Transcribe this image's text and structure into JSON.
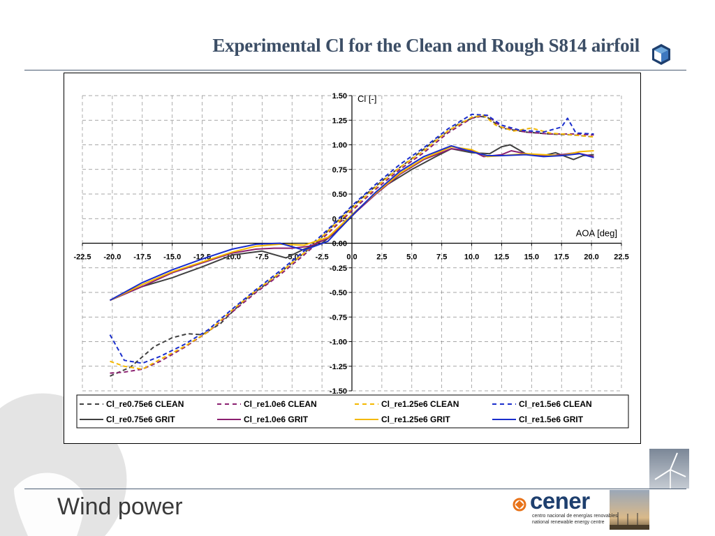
{
  "slide": {
    "title": "Experimental Cl for the Clean and Rough S814 airfoil",
    "footer": "Wind power",
    "brand": {
      "name": "cener",
      "subtitle_es": "centro nacional de energías renovables",
      "subtitle_en": "national renewable energy centre"
    }
  },
  "colors": {
    "title": "#3c4e66",
    "rule": "#4a5b72",
    "brand_orange": "#e8731a",
    "brand_blue": "#1e3f6e"
  },
  "chart_data": {
    "type": "line",
    "ylabel": "Cl [-]",
    "xlabel": "AOA [deg]",
    "xlim": [
      -22.5,
      22.5
    ],
    "ylim": [
      -1.5,
      1.5
    ],
    "x_ticks": [
      "-22.5",
      "-20.0",
      "-17.5",
      "-15.0",
      "-12.5",
      "-10.0",
      "-7.5",
      "-5.0",
      "-2.5",
      "0.0",
      "2.5",
      "5.0",
      "7.5",
      "10.0",
      "12.5",
      "15.0",
      "17.5",
      "20.0",
      "22.5"
    ],
    "y_ticks": [
      "1.50",
      "1.25",
      "1.00",
      "0.75",
      "0.50",
      "0.25",
      "0.00",
      "-0.25",
      "-0.50",
      "-0.75",
      "-1.00",
      "-1.25",
      "-1.50"
    ],
    "grid": true,
    "legend_position": "bottom",
    "series": [
      {
        "name": "Cl_re0.75e6 CLEAN",
        "color": "#404040",
        "dash": true,
        "x": [
          -20.2,
          -18.5,
          -16.5,
          -15.0,
          -13.7,
          -12.5,
          -11.0,
          -9.0,
          -7.0,
          -5.0,
          -3.0,
          -1.0,
          1.0,
          3.0,
          5.0,
          7.0,
          9.0,
          10.5,
          11.3,
          12.5,
          14.5,
          16.5,
          18.5,
          20.2
        ],
        "y": [
          -1.35,
          -1.26,
          -1.05,
          -0.96,
          -0.92,
          -0.93,
          -0.82,
          -0.58,
          -0.4,
          -0.2,
          0.0,
          0.25,
          0.48,
          0.68,
          0.86,
          1.05,
          1.22,
          1.29,
          1.28,
          1.17,
          1.13,
          1.11,
          1.1,
          1.08
        ]
      },
      {
        "name": "Cl_re1.0e6 CLEAN",
        "color": "#8b2070",
        "dash": true,
        "x": [
          -20.2,
          -19.0,
          -17.5,
          -16.0,
          -14.0,
          -12.0,
          -10.0,
          -8.0,
          -6.0,
          -4.0,
          -2.0,
          0.0,
          2.0,
          4.0,
          6.0,
          8.0,
          10.0,
          11.3,
          12.5,
          14.5,
          16.5,
          18.5,
          20.2
        ],
        "y": [
          -1.32,
          -1.31,
          -1.28,
          -1.2,
          -1.06,
          -0.9,
          -0.7,
          -0.5,
          -0.32,
          -0.12,
          0.1,
          0.33,
          0.55,
          0.75,
          0.92,
          1.12,
          1.27,
          1.3,
          1.18,
          1.13,
          1.11,
          1.11,
          1.1
        ]
      },
      {
        "name": "Cl_re1.25e6 CLEAN",
        "color": "#f4b800",
        "dash": true,
        "x": [
          -20.2,
          -19.0,
          -17.5,
          -16.0,
          -14.0,
          -12.0,
          -10.0,
          -8.0,
          -6.0,
          -4.0,
          -2.0,
          0.0,
          2.0,
          4.0,
          6.0,
          8.0,
          10.0,
          11.0,
          12.0,
          13.5,
          15.0,
          16.5,
          18.5,
          20.2
        ],
        "y": [
          -1.2,
          -1.25,
          -1.28,
          -1.18,
          -1.05,
          -0.9,
          -0.68,
          -0.48,
          -0.3,
          -0.1,
          0.12,
          0.35,
          0.57,
          0.77,
          0.94,
          1.14,
          1.28,
          1.3,
          1.2,
          1.14,
          1.17,
          1.12,
          1.1,
          1.08
        ]
      },
      {
        "name": "Cl_re1.5e6 CLEAN",
        "color": "#1a2ecc",
        "dash": true,
        "x": [
          -20.2,
          -19.0,
          -17.5,
          -16.0,
          -14.0,
          -12.0,
          -10.0,
          -8.0,
          -6.0,
          -4.0,
          -2.0,
          0.0,
          2.0,
          4.0,
          6.0,
          8.0,
          10.0,
          11.3,
          12.5,
          14.0,
          16.0,
          17.5,
          18.0,
          18.7,
          20.2
        ],
        "y": [
          -0.93,
          -1.19,
          -1.22,
          -1.15,
          -1.03,
          -0.88,
          -0.67,
          -0.47,
          -0.28,
          -0.08,
          0.14,
          0.38,
          0.6,
          0.8,
          0.97,
          1.16,
          1.31,
          1.3,
          1.2,
          1.15,
          1.13,
          1.18,
          1.27,
          1.12,
          1.11
        ]
      },
      {
        "name": "Cl_re0.75e6 GRIT",
        "color": "#404040",
        "dash": false,
        "x": [
          -20.2,
          -17.5,
          -15.0,
          -12.5,
          -10.0,
          -7.5,
          -5.5,
          -4.0,
          -2.5,
          -1.0,
          1.0,
          3.0,
          5.0,
          7.0,
          8.3,
          10.0,
          11.5,
          12.5,
          13.2,
          14.5,
          16.0,
          17.0,
          18.5,
          19.3,
          20.2
        ],
        "y": [
          -0.58,
          -0.44,
          -0.35,
          -0.24,
          -0.12,
          -0.08,
          -0.15,
          -0.06,
          0.0,
          0.15,
          0.4,
          0.6,
          0.75,
          0.88,
          0.96,
          0.92,
          0.91,
          0.98,
          1.0,
          0.91,
          0.89,
          0.92,
          0.85,
          0.89,
          0.9
        ]
      },
      {
        "name": "Cl_re1.0e6 GRIT",
        "color": "#8b2070",
        "dash": false,
        "x": [
          -20.2,
          -17.5,
          -15.0,
          -12.5,
          -10.0,
          -8.0,
          -6.5,
          -5.0,
          -3.5,
          -2.0,
          0.0,
          2.0,
          4.0,
          6.0,
          8.3,
          10.0,
          11.0,
          12.5,
          13.3,
          14.5,
          16.0,
          17.5,
          18.7,
          20.2
        ],
        "y": [
          -0.58,
          -0.44,
          -0.3,
          -0.2,
          -0.1,
          -0.06,
          -0.05,
          -0.05,
          -0.03,
          0.05,
          0.28,
          0.5,
          0.7,
          0.85,
          0.96,
          0.94,
          0.88,
          0.9,
          0.94,
          0.91,
          0.89,
          0.9,
          0.92,
          0.88
        ]
      },
      {
        "name": "Cl_re1.25e6 GRIT",
        "color": "#f4b800",
        "dash": false,
        "x": [
          -20.2,
          -17.5,
          -15.0,
          -12.5,
          -10.0,
          -8.0,
          -6.0,
          -4.0,
          -2.0,
          0.0,
          2.0,
          4.0,
          6.0,
          8.3,
          10.0,
          11.3,
          12.5,
          14.5,
          16.0,
          17.5,
          19.0,
          20.2
        ],
        "y": [
          -0.58,
          -0.42,
          -0.29,
          -0.19,
          -0.09,
          -0.03,
          -0.01,
          -0.02,
          0.06,
          0.29,
          0.51,
          0.71,
          0.86,
          0.98,
          0.95,
          0.88,
          0.89,
          0.91,
          0.9,
          0.89,
          0.93,
          0.94
        ]
      },
      {
        "name": "Cl_re1.5e6 GRIT",
        "color": "#1a2ecc",
        "dash": false,
        "x": [
          -20.2,
          -17.5,
          -15.0,
          -12.5,
          -10.0,
          -8.0,
          -6.0,
          -4.0,
          -2.0,
          0.0,
          2.0,
          4.0,
          6.0,
          8.3,
          10.0,
          11.3,
          12.5,
          14.5,
          16.0,
          17.5,
          19.0,
          20.2
        ],
        "y": [
          -0.58,
          -0.4,
          -0.27,
          -0.16,
          -0.06,
          -0.01,
          0.0,
          -0.07,
          0.02,
          0.28,
          0.52,
          0.73,
          0.88,
          0.99,
          0.93,
          0.89,
          0.89,
          0.9,
          0.88,
          0.89,
          0.91,
          0.87
        ]
      }
    ]
  }
}
